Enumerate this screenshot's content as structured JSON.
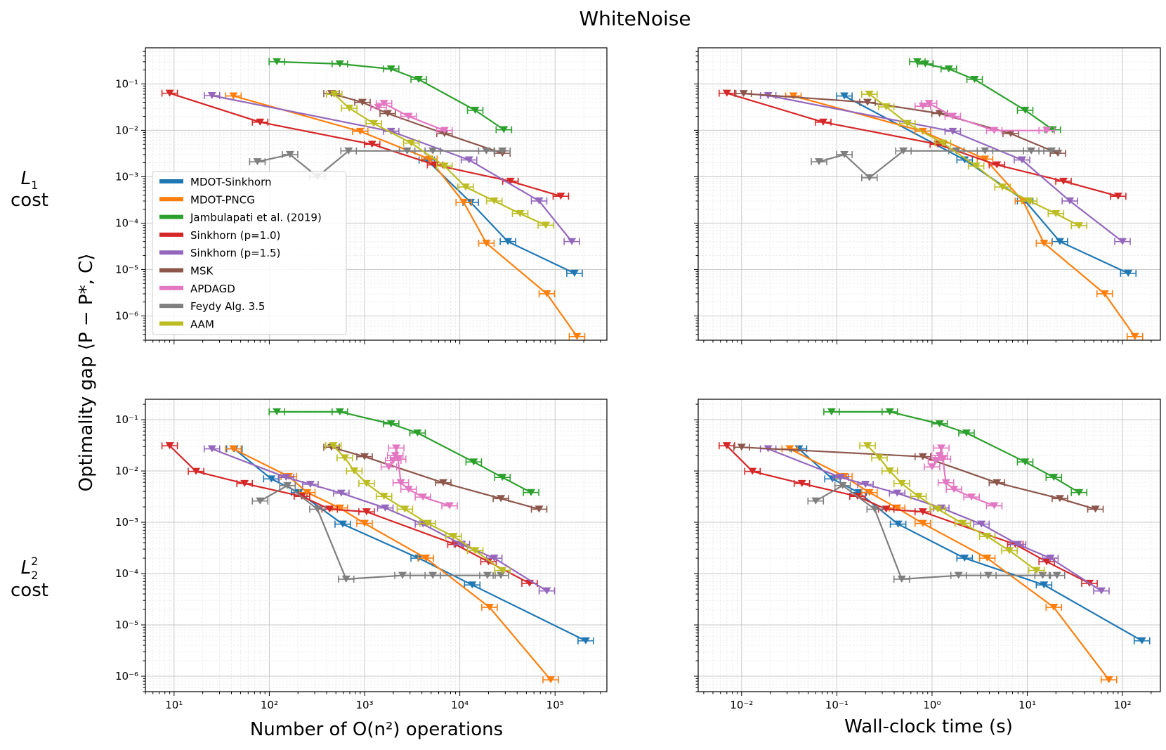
{
  "figure": {
    "title": "WhiteNoise",
    "ylabel": "Optimality gap ⟨P − P*, C⟩",
    "rows": [
      {
        "label_main": "L",
        "label_sub": "1",
        "label_sup": "",
        "label_second": "cost"
      },
      {
        "label_main": "L",
        "label_sub": "2",
        "label_sup": "2",
        "label_second": "cost"
      }
    ],
    "xlabels": [
      "Number of O(n²) operations",
      "Wall-clock time (s)"
    ],
    "left_xticks": [
      "10¹",
      "10²",
      "10³",
      "10⁴",
      "10⁵"
    ],
    "right_xticks": [
      "10⁻²",
      "10⁻¹",
      "10⁰",
      "10¹",
      "10²"
    ],
    "top_yticks": [
      "10⁻¹",
      "10⁻²",
      "10⁻³",
      "10⁻⁴",
      "10⁻⁵",
      "10⁻⁶"
    ],
    "bottom_yticks": [
      "10⁻¹",
      "10⁻²",
      "10⁻³",
      "10⁻⁴",
      "10⁻⁵",
      "10⁻⁶"
    ]
  },
  "chart_data": [
    {
      "type": "line",
      "title": "WhiteNoise — L1 cost",
      "xlabel": "Number of O(n²) operations",
      "ylabel": "Optimality gap ⟨P − P*, C⟩",
      "xscale": "log",
      "yscale": "log",
      "xlim": [
        5,
        350000
      ],
      "ylim": [
        3e-07,
        0.6
      ],
      "legend": "lower-left",
      "series": [
        {
          "name": "MDOT-Sinkhorn",
          "color": "#1f77b4",
          "x": [
            4500,
            13000,
            32000,
            160000
          ],
          "y": [
            0.0023,
            0.00028,
            4e-05,
            8.3e-06
          ]
        },
        {
          "name": "MDOT-PNCG",
          "color": "#ff7f0e",
          "x": [
            42,
            900,
            4800,
            11000,
            19000,
            82000,
            170000
          ],
          "y": [
            0.055,
            0.0095,
            0.0024,
            0.00028,
            3.7e-05,
            3e-06,
            3.6e-07
          ]
        },
        {
          "name": "Jambulapati et al. (2019)",
          "color": "#2ca02c",
          "x": [
            120,
            550,
            1900,
            3700,
            14500,
            29000
          ],
          "y": [
            0.3,
            0.27,
            0.21,
            0.125,
            0.027,
            0.0103
          ]
        },
        {
          "name": "Sinkhorn (p=1.0)",
          "color": "#d62728",
          "x": [
            9,
            80,
            1200,
            5500,
            34000,
            115000
          ],
          "y": [
            0.063,
            0.015,
            0.005,
            0.0018,
            0.0008,
            0.00038
          ]
        },
        {
          "name": "Sinkhorn (p=1.5)",
          "color": "#9467bd",
          "x": [
            25,
            1900,
            12500,
            68000,
            150000
          ],
          "y": [
            0.056,
            0.0095,
            0.0023,
            0.0003,
            4e-05
          ]
        },
        {
          "name": "MSK",
          "color": "#8c564b",
          "x": [
            450,
            950,
            1750,
            6900,
            28000
          ],
          "y": [
            0.062,
            0.04,
            0.023,
            0.0085,
            0.0032
          ]
        },
        {
          "name": "APDAGD",
          "color": "#e377c2",
          "x": [
            1400,
            1600,
            2900,
            6900
          ],
          "y": [
            0.031,
            0.038,
            0.02,
            0.0099
          ]
        },
        {
          "name": "Feydy Alg. 3.5",
          "color": "#7f7f7f",
          "x": [
            75,
            165,
            320,
            680,
            2800,
            5200,
            19000,
            28000
          ],
          "y": [
            0.0021,
            0.003,
            0.001,
            0.0036,
            0.0036,
            0.0036,
            0.0036,
            0.0036
          ]
        },
        {
          "name": "AAM",
          "color": "#bcbd22",
          "x": [
            480,
            690,
            1250,
            3100,
            6900,
            11500,
            23000,
            43000,
            80000
          ],
          "y": [
            0.06,
            0.03,
            0.014,
            0.0053,
            0.0017,
            0.0006,
            0.0003,
            0.00016,
            9e-05
          ]
        }
      ]
    },
    {
      "type": "line",
      "title": "WhiteNoise — L1 cost",
      "xlabel": "Wall-clock time (s)",
      "xscale": "log",
      "yscale": "log",
      "xlim": [
        0.0035,
        250
      ],
      "ylim": [
        3e-07,
        0.6
      ],
      "series": [
        {
          "name": "MDOT-Sinkhorn",
          "color": "#1f77b4",
          "x": [
            0.12,
            2.2,
            9.5,
            22,
            115
          ],
          "y": [
            0.055,
            0.0023,
            0.0003,
            4e-05,
            8.3e-06
          ]
        },
        {
          "name": "MDOT-PNCG",
          "color": "#ff7f0e",
          "x": [
            0.035,
            0.8,
            3.6,
            9.0,
            15,
            65,
            135
          ],
          "y": [
            0.055,
            0.0095,
            0.0024,
            0.0003,
            3.7e-05,
            3e-06,
            3.6e-07
          ]
        },
        {
          "name": "Jambulapati et al. (2019)",
          "color": "#2ca02c",
          "x": [
            0.7,
            0.85,
            1.5,
            2.8,
            9.5,
            18.5
          ],
          "y": [
            0.3,
            0.27,
            0.21,
            0.125,
            0.027,
            0.0103
          ]
        },
        {
          "name": "Sinkhorn (p=1.0)",
          "color": "#d62728",
          "x": [
            0.007,
            0.072,
            1.15,
            4.8,
            24,
            90
          ],
          "y": [
            0.063,
            0.015,
            0.005,
            0.0018,
            0.0008,
            0.00038
          ]
        },
        {
          "name": "Sinkhorn (p=1.5)",
          "color": "#9467bd",
          "x": [
            0.019,
            1.65,
            8.8,
            28,
            100
          ],
          "y": [
            0.056,
            0.0095,
            0.0023,
            0.0003,
            4e-05
          ]
        },
        {
          "name": "MSK",
          "color": "#8c564b",
          "x": [
            0.0105,
            0.21,
            1.2,
            6.7,
            21
          ],
          "y": [
            0.062,
            0.04,
            0.023,
            0.0085,
            0.0032
          ]
        },
        {
          "name": "APDAGD",
          "color": "#e377c2",
          "x": [
            0.8,
            0.93,
            1.65,
            4.5,
            16
          ],
          "y": [
            0.033,
            0.038,
            0.02,
            0.0099,
            0.0099
          ]
        },
        {
          "name": "Feydy Alg. 3.5",
          "color": "#7f7f7f",
          "x": [
            0.065,
            0.12,
            0.22,
            0.5,
            1.8,
            3.6,
            11,
            18
          ],
          "y": [
            0.0021,
            0.003,
            0.00095,
            0.0036,
            0.0036,
            0.0036,
            0.0036,
            0.0036
          ]
        },
        {
          "name": "AAM",
          "color": "#bcbd22",
          "x": [
            0.22,
            0.33,
            0.55,
            1.3,
            2.9,
            5.5,
            10.5,
            20,
            35
          ],
          "y": [
            0.06,
            0.032,
            0.014,
            0.0053,
            0.0017,
            0.0006,
            0.0003,
            0.00016,
            8.8e-05
          ]
        }
      ]
    },
    {
      "type": "line",
      "title": "WhiteNoise — L2² cost",
      "xlabel": "Number of O(n²) operations",
      "ylabel": "Optimality gap ⟨P − P*, C⟩",
      "xscale": "log",
      "yscale": "log",
      "xlim": [
        5,
        350000
      ],
      "ylim": [
        5e-07,
        0.25
      ],
      "series": [
        {
          "name": "MDOT-Sinkhorn",
          "color": "#1f77b4",
          "x": [
            43,
            105,
            205,
            590,
            3700,
            13500,
            210000
          ],
          "y": [
            0.027,
            0.007,
            0.0038,
            0.00092,
            0.0002,
            6e-05,
            4.9e-06
          ]
        },
        {
          "name": "MDOT-PNCG",
          "color": "#ff7f0e",
          "x": [
            42,
            160,
            250,
            550,
            1000,
            4400,
            20500,
            90000
          ],
          "y": [
            0.027,
            0.0078,
            0.0038,
            0.0019,
            0.00095,
            0.0002,
            2.2e-05,
            8.5e-07
          ]
        },
        {
          "name": "Jambulapati et al. (2019)",
          "color": "#2ca02c",
          "x": [
            120,
            550,
            1900,
            3600,
            14000,
            28000,
            56000
          ],
          "y": [
            0.142,
            0.142,
            0.083,
            0.055,
            0.015,
            0.0075,
            0.0038
          ]
        },
        {
          "name": "Sinkhorn (p=1.0)",
          "color": "#d62728",
          "x": [
            9,
            17,
            55,
            220,
            430,
            1050,
            9000,
            20000,
            54000
          ],
          "y": [
            0.031,
            0.0098,
            0.0057,
            0.0032,
            0.0018,
            0.0016,
            0.00037,
            0.00017,
            6.45e-05
          ]
        },
        {
          "name": "Sinkhorn (p=1.5)",
          "color": "#9467bd",
          "x": [
            25,
            150,
            270,
            570,
            1650,
            4100,
            10500,
            23000,
            82000
          ],
          "y": [
            0.027,
            0.0075,
            0.0055,
            0.0037,
            0.0019,
            0.00092,
            0.00037,
            0.0002,
            4.6e-05
          ]
        },
        {
          "name": "MSK",
          "color": "#8c564b",
          "x": [
            450,
            1000,
            6700,
            27000,
            68000
          ],
          "y": [
            0.029,
            0.019,
            0.0059,
            0.0029,
            0.0018
          ]
        },
        {
          "name": "APDAGD",
          "color": "#e377c2",
          "x": [
            1800,
            2000,
            2100,
            2150,
            2250,
            2400,
            2900,
            4100,
            7800
          ],
          "y": [
            0.012,
            0.016,
            0.02,
            0.028,
            0.017,
            0.0059,
            0.0044,
            0.0031,
            0.0021
          ]
        },
        {
          "name": "Feydy Alg. 3.5",
          "color": "#7f7f7f",
          "x": [
            80,
            155,
            320,
            640,
            2500,
            5200,
            19500,
            27000
          ],
          "y": [
            0.0026,
            0.0052,
            0.0018,
            7.8e-05,
            9.2e-05,
            9.2e-05,
            9.2e-05,
            9.2e-05
          ]
        },
        {
          "name": "AAM",
          "color": "#bcbd22",
          "x": [
            470,
            620,
            780,
            1050,
            1600,
            2650,
            4600,
            8600,
            14500,
            28000
          ],
          "y": [
            0.031,
            0.018,
            0.01,
            0.0057,
            0.0032,
            0.0018,
            0.00095,
            0.00053,
            0.00028,
            0.000115
          ]
        }
      ]
    },
    {
      "type": "line",
      "title": "WhiteNoise — L2² cost",
      "xlabel": "Wall-clock time (s)",
      "xscale": "log",
      "yscale": "log",
      "xlim": [
        0.0035,
        250
      ],
      "ylim": [
        5e-07,
        0.25
      ],
      "series": [
        {
          "name": "MDOT-Sinkhorn",
          "color": "#1f77b4",
          "x": [
            0.04,
            0.09,
            0.17,
            0.44,
            2.2,
            15,
            160
          ],
          "y": [
            0.027,
            0.007,
            0.0038,
            0.00092,
            0.0002,
            6e-05,
            4.9e-06
          ]
        },
        {
          "name": "MDOT-PNCG",
          "color": "#ff7f0e",
          "x": [
            0.032,
            0.12,
            0.22,
            0.43,
            0.8,
            3.8,
            19,
            72
          ],
          "y": [
            0.027,
            0.0078,
            0.0038,
            0.0019,
            0.00095,
            0.0002,
            2.2e-05,
            8.5e-07
          ]
        },
        {
          "name": "Jambulapati et al. (2019)",
          "color": "#2ca02c",
          "x": [
            0.088,
            0.36,
            1.2,
            2.3,
            9.5,
            19,
            35
          ],
          "y": [
            0.142,
            0.142,
            0.083,
            0.055,
            0.015,
            0.0075,
            0.0038
          ]
        },
        {
          "name": "Sinkhorn (p=1.0)",
          "color": "#d62728",
          "x": [
            0.007,
            0.013,
            0.043,
            0.165,
            0.33,
            0.8,
            7.5,
            16,
            45
          ],
          "y": [
            0.031,
            0.0098,
            0.0057,
            0.0032,
            0.0018,
            0.0016,
            0.00037,
            0.00017,
            6.45e-05
          ]
        },
        {
          "name": "Sinkhorn (p=1.5)",
          "color": "#9467bd",
          "x": [
            0.019,
            0.11,
            0.2,
            0.43,
            1.25,
            3.3,
            8.0,
            17.5,
            60
          ],
          "y": [
            0.027,
            0.0075,
            0.0055,
            0.0037,
            0.0019,
            0.00092,
            0.00037,
            0.0002,
            4.6e-05
          ]
        },
        {
          "name": "MSK",
          "color": "#8c564b",
          "x": [
            0.01,
            0.8,
            4.8,
            22,
            52
          ],
          "y": [
            0.029,
            0.019,
            0.0059,
            0.0029,
            0.0018
          ]
        },
        {
          "name": "APDAGD",
          "color": "#e377c2",
          "x": [
            1.0,
            1.1,
            1.2,
            1.25,
            1.3,
            1.4,
            1.7,
            2.6,
            4.5
          ],
          "y": [
            0.012,
            0.016,
            0.02,
            0.028,
            0.017,
            0.0059,
            0.0044,
            0.0031,
            0.0021
          ]
        },
        {
          "name": "Feydy Alg. 3.5",
          "color": "#7f7f7f",
          "x": [
            0.06,
            0.115,
            0.25,
            0.48,
            1.9,
            3.9,
            14.5,
            20.5
          ],
          "y": [
            0.0026,
            0.0052,
            0.0018,
            7.8e-05,
            9.2e-05,
            9.2e-05,
            9.2e-05,
            9.2e-05
          ]
        },
        {
          "name": "AAM",
          "color": "#bcbd22",
          "x": [
            0.21,
            0.28,
            0.36,
            0.48,
            0.72,
            1.15,
            2.1,
            3.8,
            6.5,
            12.5
          ],
          "y": [
            0.031,
            0.018,
            0.01,
            0.0057,
            0.0032,
            0.0018,
            0.00095,
            0.00053,
            0.00028,
            0.000115
          ]
        }
      ]
    }
  ]
}
